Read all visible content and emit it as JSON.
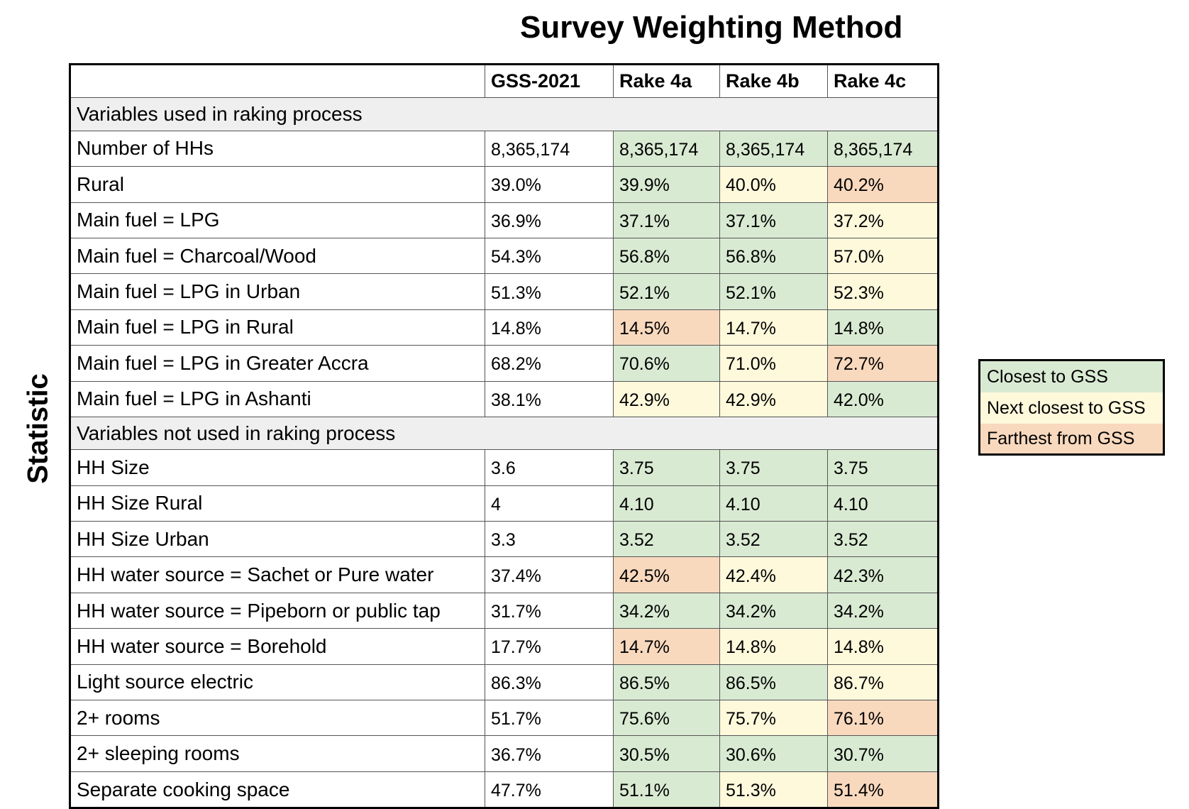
{
  "chart_data": {
    "type": "table",
    "title": "Survey Weighting Method",
    "ylabel": "Statistic",
    "columns": [
      "",
      "GSS-2021",
      "Rake 4a",
      "Rake 4b",
      "Rake 4c"
    ],
    "colors": {
      "closest": "#d9ead3",
      "next": "#fff9dc",
      "farthest": "#f9d9be",
      "section": "#efefef"
    },
    "legend": {
      "placement": "right",
      "items": [
        {
          "key": "closest",
          "label": "Closest to GSS"
        },
        {
          "key": "next",
          "label": "Next closest to GSS"
        },
        {
          "key": "far",
          "label": "Farthest from GSS"
        }
      ]
    },
    "rows": [
      {
        "section": "Variables used in raking process"
      },
      {
        "label": "Number of HHs",
        "values": [
          "8,365,174",
          "8,365,174",
          "8,365,174",
          "8,365,174"
        ],
        "ranks": [
          "",
          "closest",
          "closest",
          "closest"
        ]
      },
      {
        "label": "Rural",
        "values": [
          "39.0%",
          "39.9%",
          "40.0%",
          "40.2%"
        ],
        "ranks": [
          "",
          "closest",
          "next",
          "far"
        ]
      },
      {
        "label": "Main fuel = LPG",
        "values": [
          "36.9%",
          "37.1%",
          "37.1%",
          "37.2%"
        ],
        "ranks": [
          "",
          "closest",
          "closest",
          "next"
        ]
      },
      {
        "label": "Main fuel = Charcoal/Wood",
        "values": [
          "54.3%",
          "56.8%",
          "56.8%",
          "57.0%"
        ],
        "ranks": [
          "",
          "closest",
          "closest",
          "next"
        ]
      },
      {
        "label": "Main fuel = LPG in Urban",
        "values": [
          "51.3%",
          "52.1%",
          "52.1%",
          "52.3%"
        ],
        "ranks": [
          "",
          "closest",
          "closest",
          "next"
        ]
      },
      {
        "label": "Main fuel = LPG in Rural",
        "values": [
          "14.8%",
          "14.5%",
          "14.7%",
          "14.8%"
        ],
        "ranks": [
          "",
          "far",
          "next",
          "closest"
        ]
      },
      {
        "label": "Main fuel = LPG in Greater Accra",
        "values": [
          "68.2%",
          "70.6%",
          "71.0%",
          "72.7%"
        ],
        "ranks": [
          "",
          "closest",
          "next",
          "far"
        ]
      },
      {
        "label": "Main fuel = LPG in Ashanti",
        "values": [
          "38.1%",
          "42.9%",
          "42.9%",
          "42.0%"
        ],
        "ranks": [
          "",
          "next",
          "next",
          "closest"
        ]
      },
      {
        "section": "Variables not used in raking process"
      },
      {
        "label": "HH Size",
        "values": [
          "3.6",
          "3.75",
          "3.75",
          "3.75"
        ],
        "ranks": [
          "",
          "closest",
          "closest",
          "closest"
        ]
      },
      {
        "label": "HH Size Rural",
        "values": [
          "4",
          "4.10",
          "4.10",
          "4.10"
        ],
        "ranks": [
          "",
          "closest",
          "closest",
          "closest"
        ]
      },
      {
        "label": "HH Size Urban",
        "values": [
          "3.3",
          "3.52",
          "3.52",
          "3.52"
        ],
        "ranks": [
          "",
          "closest",
          "closest",
          "closest"
        ]
      },
      {
        "label": "HH water source = Sachet or Pure water",
        "values": [
          "37.4%",
          "42.5%",
          "42.4%",
          "42.3%"
        ],
        "ranks": [
          "",
          "far",
          "next",
          "closest"
        ]
      },
      {
        "label": "HH water source = Pipeborn or public tap",
        "values": [
          "31.7%",
          "34.2%",
          "34.2%",
          "34.2%"
        ],
        "ranks": [
          "",
          "closest",
          "closest",
          "closest"
        ]
      },
      {
        "label": "HH water source = Borehold",
        "values": [
          "17.7%",
          "14.7%",
          "14.8%",
          "14.8%"
        ],
        "ranks": [
          "",
          "far",
          "next",
          "next"
        ]
      },
      {
        "label": "Light source electric",
        "values": [
          "86.3%",
          "86.5%",
          "86.5%",
          "86.7%"
        ],
        "ranks": [
          "",
          "closest",
          "closest",
          "next"
        ]
      },
      {
        "label": "2+ rooms",
        "values": [
          "51.7%",
          "75.6%",
          "75.7%",
          "76.1%"
        ],
        "ranks": [
          "",
          "closest",
          "next",
          "far"
        ]
      },
      {
        "label": "2+ sleeping rooms",
        "values": [
          "36.7%",
          "30.5%",
          "30.6%",
          "30.7%"
        ],
        "ranks": [
          "",
          "closest",
          "closest",
          "closest"
        ]
      },
      {
        "label": "Separate cooking space",
        "values": [
          "47.7%",
          "51.1%",
          "51.3%",
          "51.4%"
        ],
        "ranks": [
          "",
          "closest",
          "next",
          "far"
        ]
      }
    ]
  }
}
